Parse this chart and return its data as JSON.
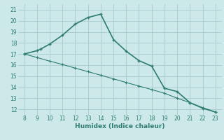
{
  "xlabel": "Humidex (Indice chaleur)",
  "x_line1": [
    8,
    9,
    9.3,
    10,
    11,
    12,
    13,
    14,
    15,
    16,
    17,
    18,
    19,
    20,
    21,
    22,
    23
  ],
  "y_line1": [
    17.0,
    17.3,
    17.45,
    17.9,
    18.7,
    19.7,
    20.3,
    20.6,
    18.3,
    17.25,
    16.4,
    15.9,
    13.9,
    13.6,
    12.6,
    12.1,
    11.75
  ],
  "x_line2": [
    8,
    9,
    10,
    11,
    12,
    13,
    14,
    15,
    16,
    17,
    18,
    19,
    20,
    21,
    22,
    23
  ],
  "y_line2": [
    17.0,
    16.68,
    16.35,
    16.05,
    15.72,
    15.4,
    15.08,
    14.75,
    14.42,
    14.1,
    13.78,
    13.45,
    13.0,
    12.6,
    12.15,
    11.75
  ],
  "line_color": "#2e7d6e",
  "bg_color": "#cce8e8",
  "grid_color": "#aacfcf",
  "xlim": [
    7.5,
    23.5
  ],
  "ylim": [
    11.5,
    21.5
  ],
  "xticks": [
    8,
    9,
    10,
    11,
    12,
    13,
    14,
    15,
    16,
    17,
    18,
    19,
    20,
    21,
    22,
    23
  ],
  "yticks": [
    12,
    13,
    14,
    15,
    16,
    17,
    18,
    19,
    20,
    21
  ]
}
